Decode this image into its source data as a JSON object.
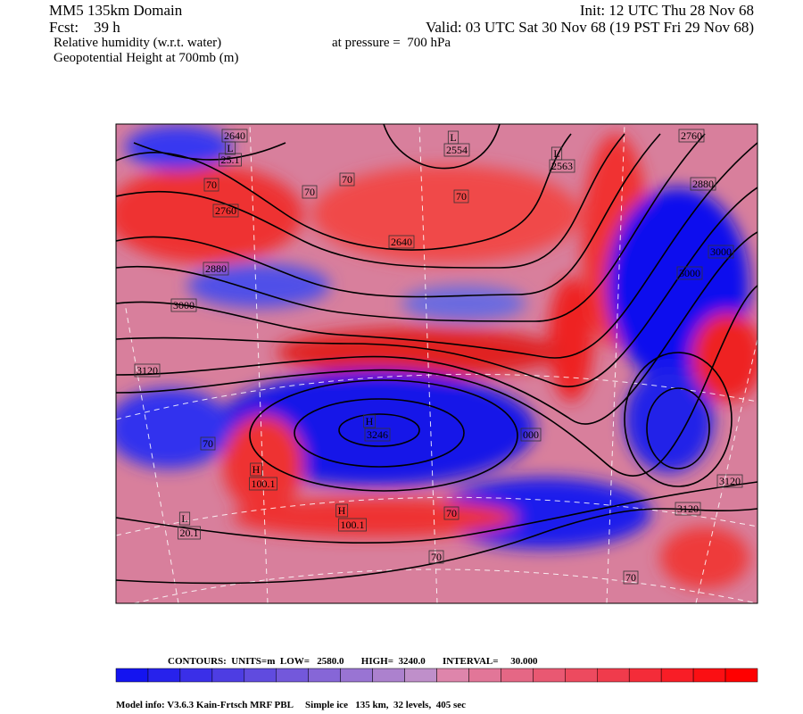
{
  "header": {
    "domain": "MM5 135km Domain",
    "init": "Init: 12 UTC Thu 28 Nov 68",
    "fcst": "Fcst:    39 h",
    "valid": "Valid: 03 UTC Sat 30 Nov 68 (19 PST Fri 29 Nov 68)",
    "field1": "Relative humidity (w.r.t. water)",
    "pressure": "at pressure =  700 hPa",
    "field2": "Geopotential Height at 700mb (m)"
  },
  "map_labels": [
    "2640",
    "L",
    "25.1",
    "L",
    "2554",
    "L",
    "2563",
    "2760",
    "2880",
    "70",
    "70",
    "70",
    "70",
    "2760",
    "2640",
    "2880",
    "3000",
    "3000",
    "3000",
    "3120",
    "H",
    "3246",
    "000",
    "3120",
    "3120",
    "L",
    "20.1",
    "70",
    "70",
    "70",
    "70",
    "H",
    "100.1",
    "H",
    "100.1"
  ],
  "footer": {
    "contours": "CONTOURS:  UNITS=m  LOW=   2580.0       HIGH=  3240.0       INTERVAL=     30.000",
    "model_info": "Model info: V3.6.3 Kain-Frtsch MRF PBL     Simple ice   135 km,  32 levels,  405 sec"
  }
}
